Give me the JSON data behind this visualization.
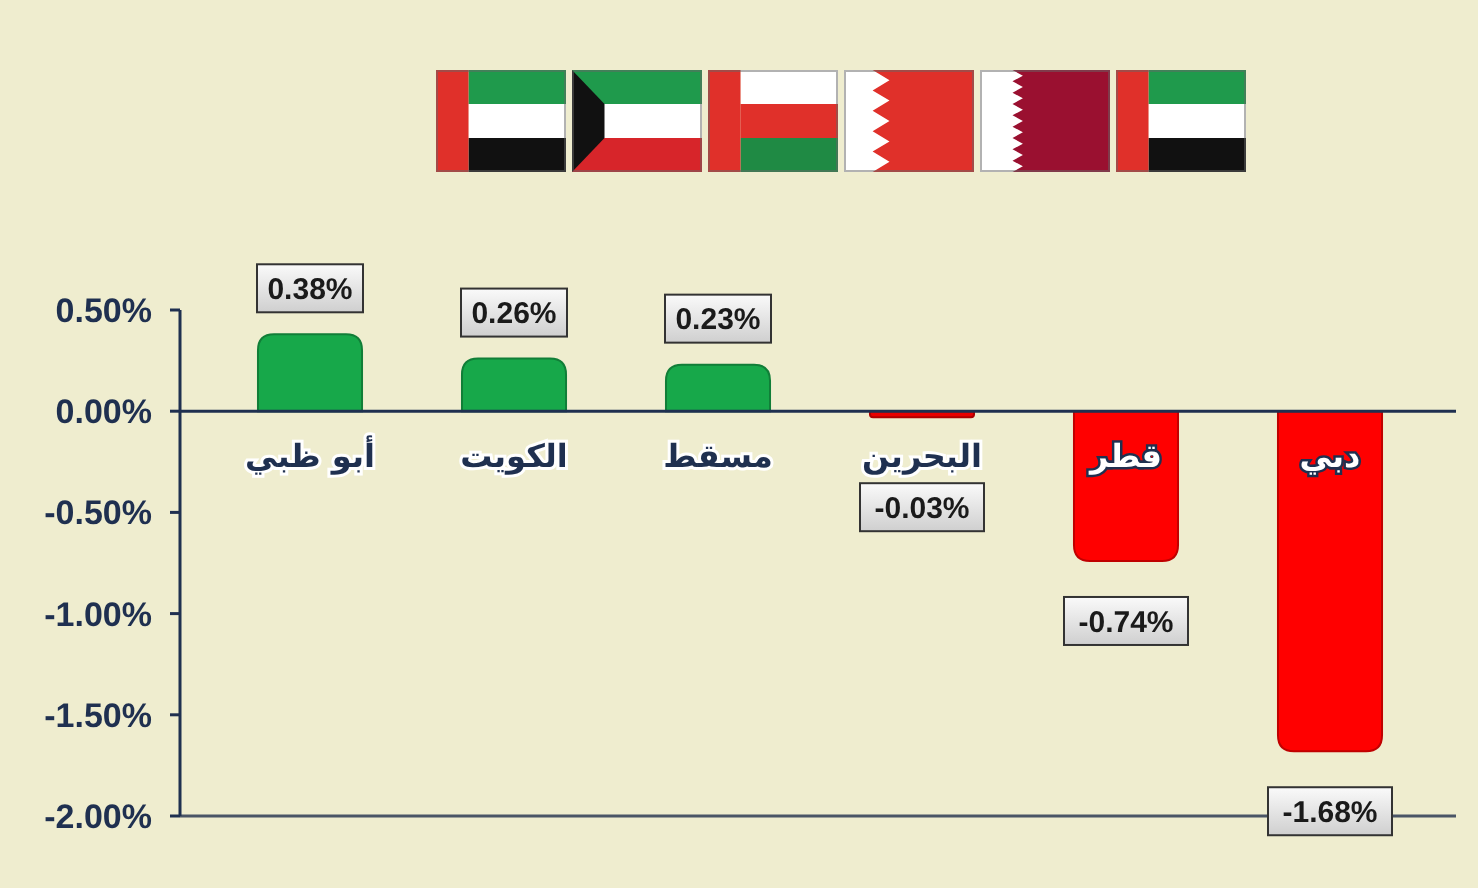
{
  "chart_data": {
    "type": "bar",
    "categories": [
      "أبو ظبي",
      "الكويت",
      "مسقط",
      "البحرين",
      "قطر",
      "دبي"
    ],
    "values": [
      0.38,
      0.26,
      0.23,
      -0.03,
      -0.74,
      -1.68
    ],
    "colors": [
      "#17a84a",
      "#17a84a",
      "#17a84a",
      "#e80000",
      "#ff0000",
      "#ff0000"
    ],
    "value_labels": [
      "0.38%",
      "0.26%",
      "0.23%",
      "-0.03%",
      "-0.74%",
      "-1.68%"
    ],
    "ylim": [
      -2,
      0.5
    ],
    "yticks": [
      {
        "value": 0.5,
        "label": "0.50%"
      },
      {
        "value": 0,
        "label": "0.00%"
      },
      {
        "value": -0.5,
        "label": "-0.50%"
      },
      {
        "value": -1,
        "label": "-1.00%"
      },
      {
        "value": -1.5,
        "label": "-1.50%"
      },
      {
        "value": -2,
        "label": "-2.00%"
      }
    ]
  }
}
